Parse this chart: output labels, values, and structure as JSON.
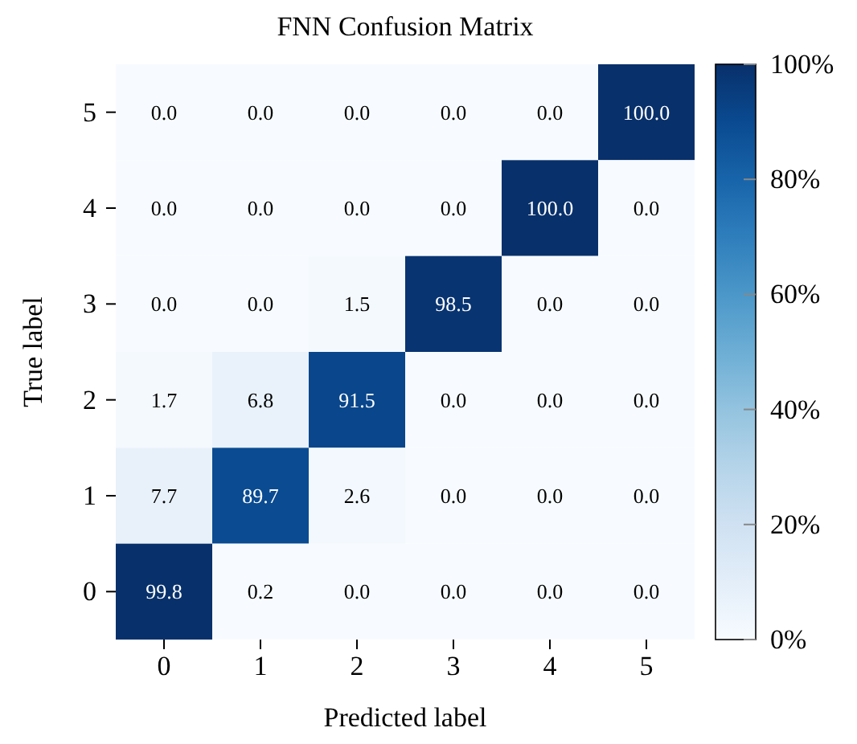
{
  "chart_data": {
    "type": "heatmap",
    "title": "FNN Confusion Matrix",
    "xlabel": "Predicted label",
    "ylabel": "True label",
    "categories": [
      "0",
      "1",
      "2",
      "3",
      "4",
      "5"
    ],
    "y_categories": [
      "5",
      "4",
      "3",
      "2",
      "1",
      "0"
    ],
    "cells": [
      [
        0.0,
        0.0,
        0.0,
        0.0,
        0.0,
        100.0
      ],
      [
        0.0,
        0.0,
        0.0,
        0.0,
        100.0,
        0.0
      ],
      [
        0.0,
        0.0,
        1.5,
        98.5,
        0.0,
        0.0
      ],
      [
        1.7,
        6.8,
        91.5,
        0.0,
        0.0,
        0.0
      ],
      [
        7.7,
        89.7,
        2.6,
        0.0,
        0.0,
        0.0
      ],
      [
        99.8,
        0.2,
        0.0,
        0.0,
        0.0,
        0.0
      ]
    ],
    "cell_labels": [
      [
        "0.0",
        "0.0",
        "0.0",
        "0.0",
        "0.0",
        "100.0"
      ],
      [
        "0.0",
        "0.0",
        "0.0",
        "0.0",
        "100.0",
        "0.0"
      ],
      [
        "0.0",
        "0.0",
        "1.5",
        "98.5",
        "0.0",
        "0.0"
      ],
      [
        "1.7",
        "6.8",
        "91.5",
        "0.0",
        "0.0",
        "0.0"
      ],
      [
        "7.7",
        "89.7",
        "2.6",
        "0.0",
        "0.0",
        "0.0"
      ],
      [
        "99.8",
        "0.2",
        "0.0",
        "0.0",
        "0.0",
        "0.0"
      ]
    ],
    "clim": [
      0,
      100
    ],
    "cticks": [
      {
        "value": 0,
        "label": "0%"
      },
      {
        "value": 20,
        "label": "20%"
      },
      {
        "value": 40,
        "label": "40%"
      },
      {
        "value": 60,
        "label": "60%"
      },
      {
        "value": 80,
        "label": "80%"
      },
      {
        "value": 100,
        "label": "100%"
      }
    ]
  }
}
